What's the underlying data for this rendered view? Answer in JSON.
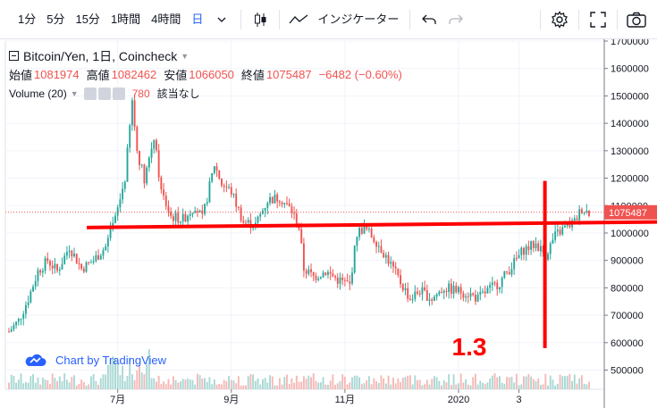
{
  "toolbar": {
    "intervals": [
      "1分",
      "5分",
      "15分",
      "1時間",
      "4時間",
      "日"
    ],
    "active_interval": "日",
    "indicators_label": "インジケーター"
  },
  "legend": {
    "symbol": "Bitcoin/Yen, 1日, Coincheck",
    "open_label": "始値",
    "open": "1081974",
    "high_label": "高値",
    "high": "1082462",
    "low_label": "安値",
    "low": "1066050",
    "close_label": "終値",
    "close": "1075487",
    "change": "−6482 (−0.60%)",
    "volume_label": "Volume (20)",
    "volume_value": "780",
    "volume_note": "該当なし"
  },
  "watermark": "Chart by TradingView",
  "annotation_text": "1.3",
  "colors": {
    "up": "#26a69a",
    "down": "#ef5350",
    "annotation": "#ff0000",
    "price_tag": "#ef5350"
  },
  "chart_data": {
    "type": "candlestick",
    "title": "Bitcoin/Yen, 1日, Coincheck",
    "x_ticks": [
      "7月",
      "9月",
      "11月",
      "2020",
      "3"
    ],
    "y_ticks": [
      "1700000",
      "1600000",
      "1500000",
      "1400000",
      "1300000",
      "1200000",
      "1100000",
      "1000000",
      "900000",
      "800000",
      "700000",
      "600000",
      "500000"
    ],
    "ylim": [
      430000,
      1700000
    ],
    "last_price": "1075487",
    "price_path": [
      [
        0,
        640000
      ],
      [
        4,
        680000
      ],
      [
        8,
        760000
      ],
      [
        12,
        860000
      ],
      [
        16,
        900000
      ],
      [
        20,
        860000
      ],
      [
        25,
        950000
      ],
      [
        30,
        870000
      ],
      [
        35,
        900000
      ],
      [
        40,
        950000
      ],
      [
        44,
        1050000
      ],
      [
        48,
        1200000
      ],
      [
        51,
        1480000
      ],
      [
        53,
        1300000
      ],
      [
        56,
        1200000
      ],
      [
        60,
        1350000
      ],
      [
        63,
        1150000
      ],
      [
        67,
        1060000
      ],
      [
        72,
        1050000
      ],
      [
        77,
        1100000
      ],
      [
        80,
        1050000
      ],
      [
        85,
        1250000
      ],
      [
        88,
        1180000
      ],
      [
        92,
        1150000
      ],
      [
        97,
        1040000
      ],
      [
        102,
        1030000
      ],
      [
        107,
        1120000
      ],
      [
        112,
        1130000
      ],
      [
        117,
        1080000
      ],
      [
        120,
        1020000
      ],
      [
        122,
        870000
      ],
      [
        126,
        840000
      ],
      [
        131,
        860000
      ],
      [
        136,
        830000
      ],
      [
        141,
        810000
      ],
      [
        144,
        1000000
      ],
      [
        147,
        1020000
      ],
      [
        152,
        970000
      ],
      [
        157,
        900000
      ],
      [
        162,
        820000
      ],
      [
        166,
        760000
      ],
      [
        170,
        790000
      ],
      [
        175,
        760000
      ],
      [
        180,
        800000
      ],
      [
        185,
        790000
      ],
      [
        190,
        780000
      ],
      [
        194,
        760000
      ],
      [
        198,
        790000
      ],
      [
        203,
        820000
      ],
      [
        208,
        880000
      ],
      [
        213,
        940000
      ],
      [
        218,
        960000
      ],
      [
        222,
        920000
      ],
      [
        226,
        990000
      ],
      [
        230,
        1020000
      ],
      [
        234,
        1040000
      ],
      [
        237,
        1090000
      ],
      [
        240,
        1075487
      ]
    ],
    "annotation_lines": [
      {
        "x": [
          0.125,
          1.0
        ],
        "y": [
          1020000,
          1040000
        ]
      },
      {
        "x": [
          0.828,
          0.828
        ],
        "y": [
          1190000,
          580000
        ]
      }
    ]
  }
}
